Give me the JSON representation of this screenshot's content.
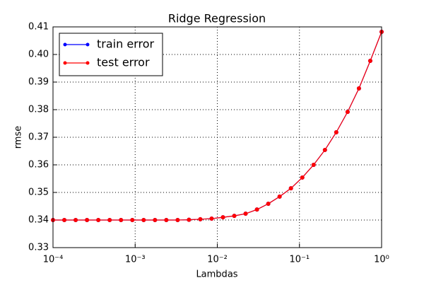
{
  "chart_data": {
    "type": "line",
    "title": "Ridge Regression",
    "x_label": "Lambdas",
    "y_label": "rmse",
    "x": [
      0.0001,
      0.0001374,
      0.0001887,
      0.0002593,
      0.0003562,
      0.0004894,
      0.0006723,
      0.0009237,
      0.001269,
      0.001743,
      0.002395,
      0.00329,
      0.00452,
      0.00621,
      0.008532,
      0.01172,
      0.0161,
      0.02212,
      0.03039,
      0.04175,
      0.05736,
      0.0788,
      0.1083,
      0.1487,
      0.2043,
      0.2807,
      0.3857,
      0.5298,
      0.7279,
      1.0
    ],
    "series": [
      {
        "name": "train error",
        "color": "#0000ff",
        "values": [
          0.34,
          0.34,
          0.34,
          0.34,
          0.34,
          0.34,
          0.34,
          0.34,
          0.34,
          0.34,
          0.34,
          0.34,
          0.3401,
          0.3403,
          0.3405,
          0.341,
          0.3415,
          0.3423,
          0.3438,
          0.3459,
          0.3485,
          0.3515,
          0.3554,
          0.36,
          0.3654,
          0.3718,
          0.3792,
          0.3877,
          0.3977,
          0.4082
        ]
      },
      {
        "name": "test error",
        "color": "#ff0000",
        "values": [
          0.34,
          0.34,
          0.34,
          0.34,
          0.34,
          0.34,
          0.34,
          0.34,
          0.34,
          0.34,
          0.34,
          0.34,
          0.3401,
          0.3403,
          0.3405,
          0.341,
          0.3415,
          0.3423,
          0.3438,
          0.3459,
          0.3485,
          0.3515,
          0.3554,
          0.36,
          0.3654,
          0.3718,
          0.3792,
          0.3877,
          0.3977,
          0.4082
        ]
      }
    ],
    "xlim": [
      0.0001,
      1
    ],
    "xscale": "log",
    "xticks": [
      {
        "value": 0.0001,
        "label": "10⁻⁴"
      },
      {
        "value": 0.001,
        "label": "10⁻³"
      },
      {
        "value": 0.01,
        "label": "10⁻²"
      },
      {
        "value": 0.1,
        "label": "10⁻¹"
      },
      {
        "value": 1,
        "label": "10⁰"
      }
    ],
    "ylim": [
      0.33,
      0.41
    ],
    "yticks": [
      0.33,
      0.34,
      0.35,
      0.36,
      0.37,
      0.38,
      0.39,
      {
        "value": 0.4,
        "label": "0.40"
      },
      0.41
    ],
    "grid": true,
    "legend": "upper left"
  }
}
